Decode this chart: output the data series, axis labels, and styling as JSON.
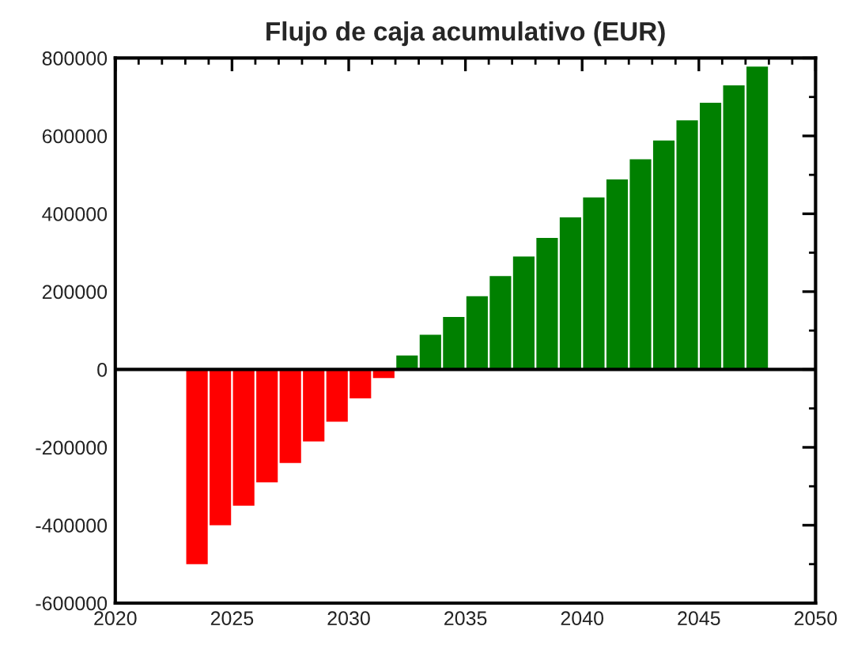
{
  "chart_data": {
    "type": "bar",
    "title": "Flujo de caja acumulativo (EUR)",
    "x": [
      2023.5,
      2024.5,
      2025.5,
      2026.5,
      2027.5,
      2028.5,
      2029.5,
      2030.5,
      2031.5,
      2032.5,
      2033.5,
      2034.5,
      2035.5,
      2036.5,
      2037.5,
      2038.5,
      2039.5,
      2040.5,
      2041.5,
      2042.5,
      2043.5,
      2044.5,
      2045.5,
      2046.5,
      2047.5
    ],
    "values": [
      -500000,
      -400000,
      -350000,
      -290000,
      -240000,
      -185000,
      -134000,
      -74000,
      -22000,
      36000,
      89000,
      135000,
      188000,
      240000,
      290000,
      338000,
      391000,
      442000,
      488000,
      540000,
      588000,
      640000,
      685000,
      730000,
      778000
    ],
    "colors": [
      "#ff0000",
      "#ff0000",
      "#ff0000",
      "#ff0000",
      "#ff0000",
      "#ff0000",
      "#ff0000",
      "#ff0000",
      "#ff0000",
      "#008000",
      "#008000",
      "#008000",
      "#008000",
      "#008000",
      "#008000",
      "#008000",
      "#008000",
      "#008000",
      "#008000",
      "#008000",
      "#008000",
      "#008000",
      "#008000",
      "#008000",
      "#008000"
    ],
    "xlim": [
      2020,
      2050
    ],
    "xticks": [
      2020,
      2025,
      2030,
      2035,
      2040,
      2045,
      2050
    ],
    "ylim": [
      -600000,
      800000
    ],
    "yticks": [
      -600000,
      -400000,
      -200000,
      0,
      200000,
      400000,
      600000,
      800000
    ],
    "ref_lines": [
      {
        "axis": "y",
        "value": 0,
        "color": "#000000"
      }
    ],
    "grid": false,
    "legend": false
  }
}
